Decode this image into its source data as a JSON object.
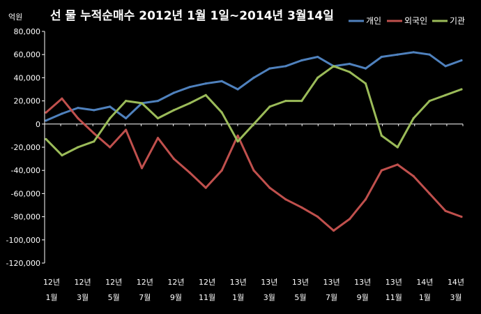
{
  "chart_data": {
    "type": "line",
    "title": "선 물 누적순매수 2012년 1월 1일~2014년 3월14일",
    "ylabel": "억원",
    "xlabel": "",
    "ylim": [
      -120000,
      80000
    ],
    "yticks": [
      "80,000",
      "60,000",
      "40,000",
      "20,000",
      "0",
      "-20,000",
      "-40,000",
      "-60,000",
      "-80,000",
      "-100,000",
      "-120,000"
    ],
    "xtick_years": [
      "12년",
      "12년",
      "12년",
      "12년",
      "12년",
      "12년",
      "13년",
      "13년",
      "13년",
      "13년",
      "13년",
      "13년",
      "14년",
      "14년"
    ],
    "xtick_months": [
      "1월",
      "3월",
      "5월",
      "7월",
      "9월",
      "11월",
      "1월",
      "3월",
      "5월",
      "7월",
      "9월",
      "11월",
      "1월",
      "3월"
    ],
    "x": [
      "2012-01",
      "2012-02",
      "2012-03",
      "2012-04",
      "2012-05",
      "2012-06",
      "2012-07",
      "2012-08",
      "2012-09",
      "2012-10",
      "2012-11",
      "2012-12",
      "2013-01",
      "2013-02",
      "2013-03",
      "2013-04",
      "2013-05",
      "2013-06",
      "2013-07",
      "2013-08",
      "2013-09",
      "2013-10",
      "2013-11",
      "2013-12",
      "2014-01",
      "2014-02",
      "2014-03"
    ],
    "legend_position": "top-right",
    "grid": false,
    "series": [
      {
        "name": "개인",
        "color": "#4f81bd",
        "values": [
          3000,
          9000,
          14000,
          12000,
          15000,
          5000,
          18000,
          20000,
          27000,
          32000,
          35000,
          37000,
          30000,
          40000,
          48000,
          50000,
          55000,
          58000,
          50000,
          52000,
          48000,
          58000,
          60000,
          62000,
          60000,
          50000,
          55000
        ]
      },
      {
        "name": "외국인",
        "color": "#c0504d",
        "values": [
          10000,
          22000,
          5000,
          -8000,
          -20000,
          -5000,
          -38000,
          -12000,
          -30000,
          -42000,
          -55000,
          -40000,
          -10000,
          -40000,
          -55000,
          -65000,
          -72000,
          -80000,
          -92000,
          -82000,
          -65000,
          -40000,
          -35000,
          -45000,
          -60000,
          -75000,
          -80000
        ]
      },
      {
        "name": "기관",
        "color": "#9bbb59",
        "values": [
          -13000,
          -27000,
          -20000,
          -15000,
          5000,
          20000,
          18000,
          5000,
          12000,
          18000,
          25000,
          10000,
          -15000,
          0,
          15000,
          20000,
          20000,
          40000,
          50000,
          45000,
          35000,
          -10000,
          -20000,
          5000,
          20000,
          25000,
          30000
        ]
      }
    ]
  }
}
